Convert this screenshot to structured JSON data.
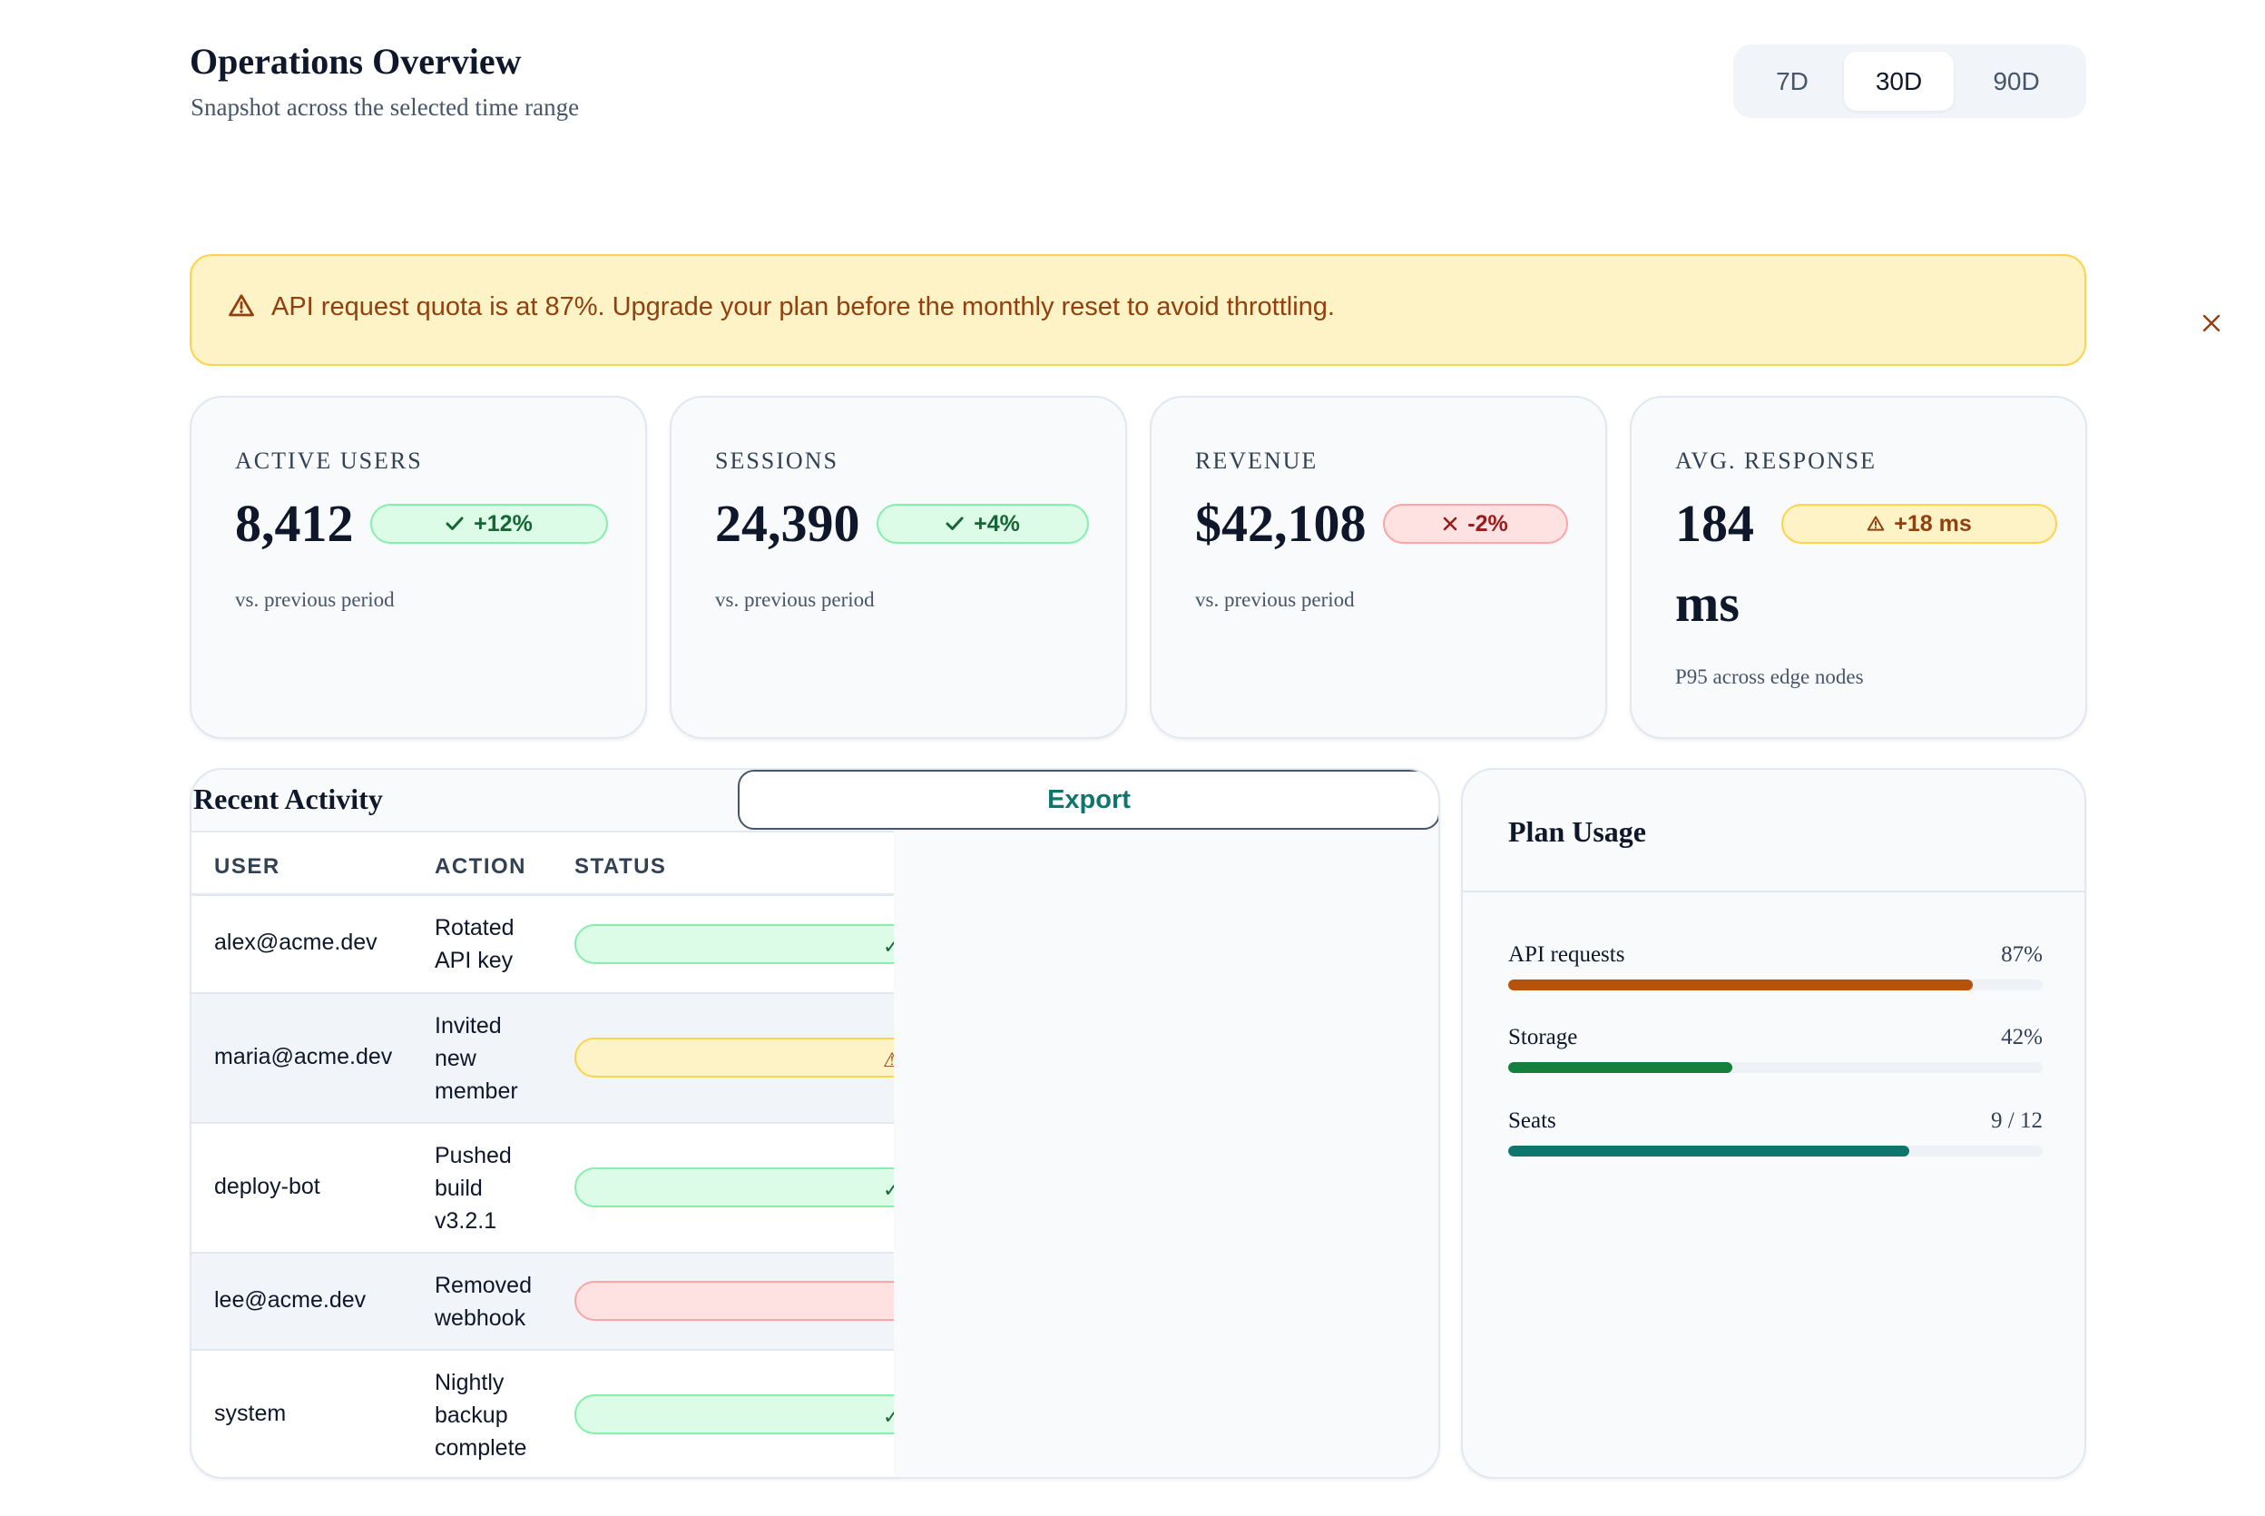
{
  "header": {
    "title": "Operations Overview",
    "subtitle": "Snapshot across the selected time range"
  },
  "range": {
    "options": [
      "7D",
      "30D",
      "90D"
    ],
    "selected": "30D"
  },
  "alert": {
    "icon": "warning-icon",
    "text": "API request quota is at 87%. Upgrade your plan before the monthly reset to avoid throttling.",
    "close_icon": "close-icon"
  },
  "kpis": [
    {
      "label": "ACTIVE USERS",
      "value": "8,412",
      "delta": "+12%",
      "trend": "good",
      "icon": "check-icon",
      "note": "vs. previous period"
    },
    {
      "label": "SESSIONS",
      "value": "24,390",
      "delta": "+4%",
      "trend": "good",
      "icon": "check-icon",
      "note": "vs. previous period"
    },
    {
      "label": "REVENUE",
      "value": "$42,108",
      "delta": "-2%",
      "trend": "bad",
      "icon": "x-icon",
      "note": "vs. previous period"
    },
    {
      "label": "AVG. RESPONSE",
      "value_line1": "184",
      "value_line2": "ms",
      "delta": "+18 ms",
      "trend": "warn",
      "icon": "warning-icon",
      "note": "P95 across edge nodes"
    }
  ],
  "activity": {
    "title": "Recent Activity",
    "export_label": "Export",
    "columns": [
      "USER",
      "ACTION",
      "STATUS"
    ],
    "rows": [
      {
        "user": "alex@acme.dev",
        "action": "Rotated API key",
        "status": "good"
      },
      {
        "user": "maria@acme.dev",
        "action": "Invited new member",
        "status": "warn"
      },
      {
        "user": "deploy-bot",
        "action": "Pushed build v3.2.1",
        "status": "good"
      },
      {
        "user": "lee@acme.dev",
        "action": "Removed webhook",
        "status": "bad"
      },
      {
        "user": "system",
        "action": "Nightly backup complete",
        "status": "good"
      }
    ]
  },
  "plan": {
    "title": "Plan Usage",
    "items": [
      {
        "label": "API requests",
        "value": "87%",
        "fraction": 0.87,
        "color": "#b45309"
      },
      {
        "label": "Storage",
        "value": "42%",
        "fraction": 0.42,
        "color": "#15803d"
      },
      {
        "label": "Seats",
        "value": "9 / 12",
        "fraction": 0.75,
        "color": "#0f766e"
      }
    ]
  }
}
